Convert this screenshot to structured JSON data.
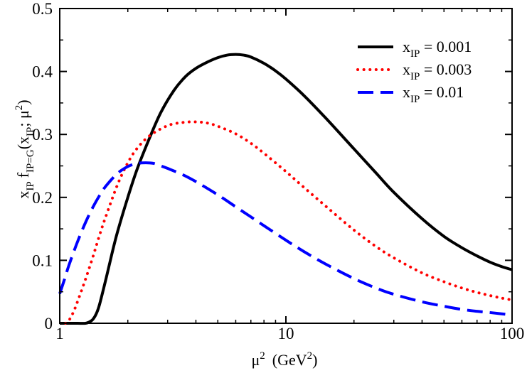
{
  "chart_data": {
    "type": "line",
    "title": "",
    "xlabel": "μ² (GeV²)",
    "ylabel": "x_IP f_IP=G(x_IP; μ²)",
    "xscale": "log",
    "xlim": [
      1,
      100
    ],
    "ylim": [
      0,
      0.5
    ],
    "grid": false,
    "legend_position": "top-right",
    "x_ticks": [
      {
        "value": 1,
        "label": "1"
      },
      {
        "value": 10,
        "label": "10"
      },
      {
        "value": 100,
        "label": "100"
      }
    ],
    "y_ticks": [
      {
        "value": 0,
        "label": "0"
      },
      {
        "value": 0.1,
        "label": "0.1"
      },
      {
        "value": 0.2,
        "label": "0.2"
      },
      {
        "value": 0.3,
        "label": "0.3"
      },
      {
        "value": 0.4,
        "label": "0.4"
      },
      {
        "value": 0.5,
        "label": "0.5"
      }
    ],
    "series": [
      {
        "name": "x_IP = 0.001",
        "legend_label": "x_IP = 0.001",
        "color": "#000000",
        "style": "solid",
        "x": [
          1.0,
          1.1,
          1.2,
          1.3,
          1.35,
          1.4,
          1.45,
          1.5,
          1.6,
          1.7,
          1.8,
          2.0,
          2.2,
          2.5,
          2.8,
          3.2,
          3.6,
          4.0,
          4.5,
          5.0,
          5.5,
          6.0,
          6.5,
          7.0,
          8.0,
          9.0,
          10.0,
          12.0,
          15.0,
          20.0,
          25.0,
          30.0,
          40.0,
          50.0,
          60.0,
          70.0,
          80.0,
          90.0,
          100.0
        ],
        "values": [
          0.0,
          0.0,
          0.0,
          0.0,
          0.002,
          0.006,
          0.015,
          0.03,
          0.07,
          0.11,
          0.145,
          0.2,
          0.245,
          0.295,
          0.335,
          0.37,
          0.392,
          0.405,
          0.415,
          0.422,
          0.426,
          0.427,
          0.426,
          0.423,
          0.413,
          0.401,
          0.388,
          0.362,
          0.326,
          0.277,
          0.239,
          0.208,
          0.166,
          0.138,
          0.12,
          0.107,
          0.097,
          0.09,
          0.085
        ]
      },
      {
        "name": "x_IP = 0.003",
        "legend_label": "x_IP = 0.003",
        "color": "#ff0000",
        "style": "dotted",
        "x": [
          1.06,
          1.1,
          1.15,
          1.2,
          1.3,
          1.4,
          1.5,
          1.6,
          1.8,
          2.0,
          2.2,
          2.5,
          3.0,
          3.5,
          4.0,
          4.5,
          5.0,
          6.0,
          7.0,
          8.0,
          10.0,
          12.0,
          15.0,
          20.0,
          25.0,
          30.0,
          40.0,
          50.0,
          60.0,
          70.0,
          80.0,
          90.0,
          100.0
        ],
        "values": [
          0.0,
          0.005,
          0.018,
          0.035,
          0.07,
          0.105,
          0.14,
          0.17,
          0.22,
          0.255,
          0.278,
          0.298,
          0.314,
          0.319,
          0.32,
          0.318,
          0.313,
          0.301,
          0.286,
          0.27,
          0.241,
          0.216,
          0.186,
          0.148,
          0.122,
          0.104,
          0.08,
          0.066,
          0.056,
          0.049,
          0.044,
          0.04,
          0.037
        ]
      },
      {
        "name": "x_IP = 0.01",
        "legend_label": "x_IP = 0.01",
        "color": "#0000ff",
        "style": "dashed",
        "x": [
          1.0,
          1.05,
          1.1,
          1.2,
          1.3,
          1.4,
          1.5,
          1.6,
          1.8,
          2.0,
          2.2,
          2.4,
          2.6,
          2.8,
          3.0,
          3.5,
          4.0,
          5.0,
          6.0,
          7.0,
          8.0,
          10.0,
          12.0,
          15.0,
          20.0,
          25.0,
          30.0,
          40.0,
          50.0,
          60.0,
          70.0,
          80.0,
          90.0,
          100.0
        ],
        "values": [
          0.047,
          0.07,
          0.093,
          0.13,
          0.16,
          0.184,
          0.203,
          0.218,
          0.238,
          0.249,
          0.254,
          0.255,
          0.254,
          0.25,
          0.246,
          0.236,
          0.225,
          0.204,
          0.185,
          0.169,
          0.155,
          0.132,
          0.114,
          0.094,
          0.071,
          0.056,
          0.046,
          0.034,
          0.027,
          0.022,
          0.019,
          0.017,
          0.015,
          0.013
        ]
      }
    ]
  }
}
